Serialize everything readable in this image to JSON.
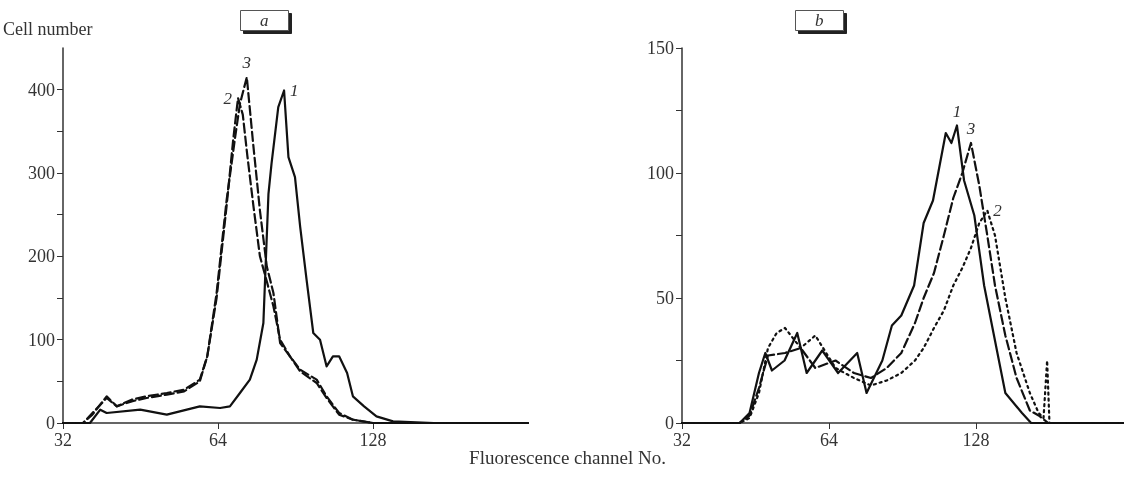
{
  "chart_data": [
    {
      "type": "line",
      "title": "a",
      "ylabel": "Cell number",
      "xlabel": "Fluorescence channel No.",
      "log": "x",
      "xlim": [
        32,
        256
      ],
      "xticks": [
        32,
        64,
        128
      ],
      "ylim": [
        0,
        450
      ],
      "yticks": [
        0,
        {
          "value": 50,
          "label": null
        },
        100,
        {
          "value": 150,
          "label": null
        },
        200,
        {
          "value": 250,
          "label": null
        },
        300,
        {
          "value": 350,
          "label": null
        },
        400
      ],
      "series": [
        {
          "name": "1",
          "color": "#111111",
          "line_style": "solid",
          "x": [
            32,
            36.1,
            37.8,
            38.9,
            45.2,
            50.9,
            59,
            64.6,
            67.5,
            70.6,
            73.8,
            76.1,
            78.4,
            80.2,
            81.3,
            83.8,
            86,
            87.7,
            90.3,
            92.4,
            95.1,
            98,
            101,
            104,
            107,
            110,
            114,
            117,
            123,
            130,
            140,
            168,
            256
          ],
          "values": [
            0,
            0,
            16,
            12,
            16,
            10,
            20,
            18,
            20,
            36,
            52,
            76,
            120,
            275,
            311,
            379,
            399,
            319,
            295,
            236,
            172,
            108,
            100,
            68,
            80,
            80,
            60,
            32,
            20,
            8,
            2,
            0,
            0
          ]
        },
        {
          "name": "2",
          "color": "#111111",
          "line_style": "dashed",
          "x": [
            32,
            35,
            36.5,
            38.9,
            40.7,
            43.5,
            46.5,
            50.9,
            55,
            59,
            61,
            63.6,
            66.5,
            68.5,
            70,
            71.5,
            73,
            75,
            77.2,
            79.6,
            82,
            84.5,
            88.3,
            92.4,
            99.5,
            104,
            110,
            117,
            128,
            256
          ],
          "values": [
            0,
            0,
            12,
            30,
            20,
            26,
            30,
            34,
            38,
            50,
            80,
            150,
            260,
            340,
            390,
            370,
            320,
            260,
            200,
            170,
            140,
            100,
            80,
            62,
            48,
            30,
            10,
            4,
            0,
            0
          ]
        },
        {
          "name": "3",
          "color": "#111111",
          "line_style": "dashed",
          "x": [
            32,
            35,
            36.5,
            38.9,
            40.7,
            43.5,
            46.5,
            50.9,
            55,
            59,
            61,
            63.6,
            66.5,
            69.1,
            70.6,
            72.8,
            74.9,
            77.2,
            79.6,
            82,
            84.5,
            88.3,
            92.4,
            99.5,
            104,
            110,
            117,
            128,
            256
          ],
          "values": [
            0,
            0,
            10,
            32,
            20,
            28,
            32,
            36,
            40,
            52,
            80,
            156,
            267,
            343,
            383,
            415,
            335,
            255,
            188,
            156,
            96,
            80,
            64,
            52,
            32,
            12,
            4,
            0,
            0
          ]
        }
      ]
    },
    {
      "type": "line",
      "title": "b",
      "log": "x",
      "xlim": [
        32,
        256
      ],
      "xticks": [
        32,
        64,
        128
      ],
      "ylim": [
        0,
        150
      ],
      "yticks": [
        0,
        {
          "value": 25,
          "label": null
        },
        50,
        {
          "value": 75,
          "label": null
        },
        100,
        {
          "value": 125,
          "label": null
        },
        150
      ],
      "series": [
        {
          "name": "1",
          "color": "#111111",
          "line_style": "solid",
          "x": [
            32,
            42,
            44,
            46,
            47.4,
            48.9,
            51.9,
            55.1,
            57.6,
            62,
            66.8,
            73.1,
            76.4,
            82.3,
            86.1,
            90,
            95.6,
            100,
            104.5,
            111,
            114,
            117,
            121,
            127,
            133,
            139,
            147,
            159,
            166,
            256
          ],
          "values": [
            0,
            0,
            4,
            20,
            28,
            21,
            25,
            36,
            20,
            29,
            20,
            28,
            12,
            25,
            39,
            43,
            55,
            80,
            89,
            116,
            112,
            119,
            97,
            83,
            55,
            36,
            12,
            4,
            0,
            0
          ]
        },
        {
          "name": "2",
          "color": "#111111",
          "line_style": "dotted",
          "x": [
            32,
            42,
            44,
            46,
            48,
            50,
            52,
            56,
            60,
            66,
            72,
            78,
            84,
            90,
            96,
            100,
            105,
            110,
            115,
            120,
            125,
            130,
            135,
            140,
            147,
            155,
            165,
            172,
            176,
            179,
            181,
            256
          ],
          "values": [
            0,
            0,
            2,
            12,
            30,
            36,
            38,
            30,
            35,
            22,
            18,
            15,
            17,
            20,
            25,
            30,
            38,
            45,
            55,
            62,
            70,
            80,
            85,
            75,
            50,
            28,
            12,
            4,
            2,
            25,
            0,
            0
          ]
        },
        {
          "name": "3",
          "color": "#111111",
          "line_style": "dashed",
          "x": [
            32,
            42,
            44,
            46,
            48,
            52,
            56,
            60,
            66,
            72,
            78,
            84,
            90,
            96,
            100,
            105,
            110,
            115,
            120,
            125,
            130,
            135,
            140,
            147,
            155,
            165,
            172,
            180,
            256
          ],
          "values": [
            0,
            0,
            3,
            14,
            27,
            28,
            30,
            22,
            25,
            20,
            18,
            22,
            28,
            40,
            50,
            60,
            75,
            90,
            100,
            112,
            95,
            75,
            55,
            35,
            18,
            5,
            3,
            0,
            0
          ]
        }
      ]
    }
  ]
}
